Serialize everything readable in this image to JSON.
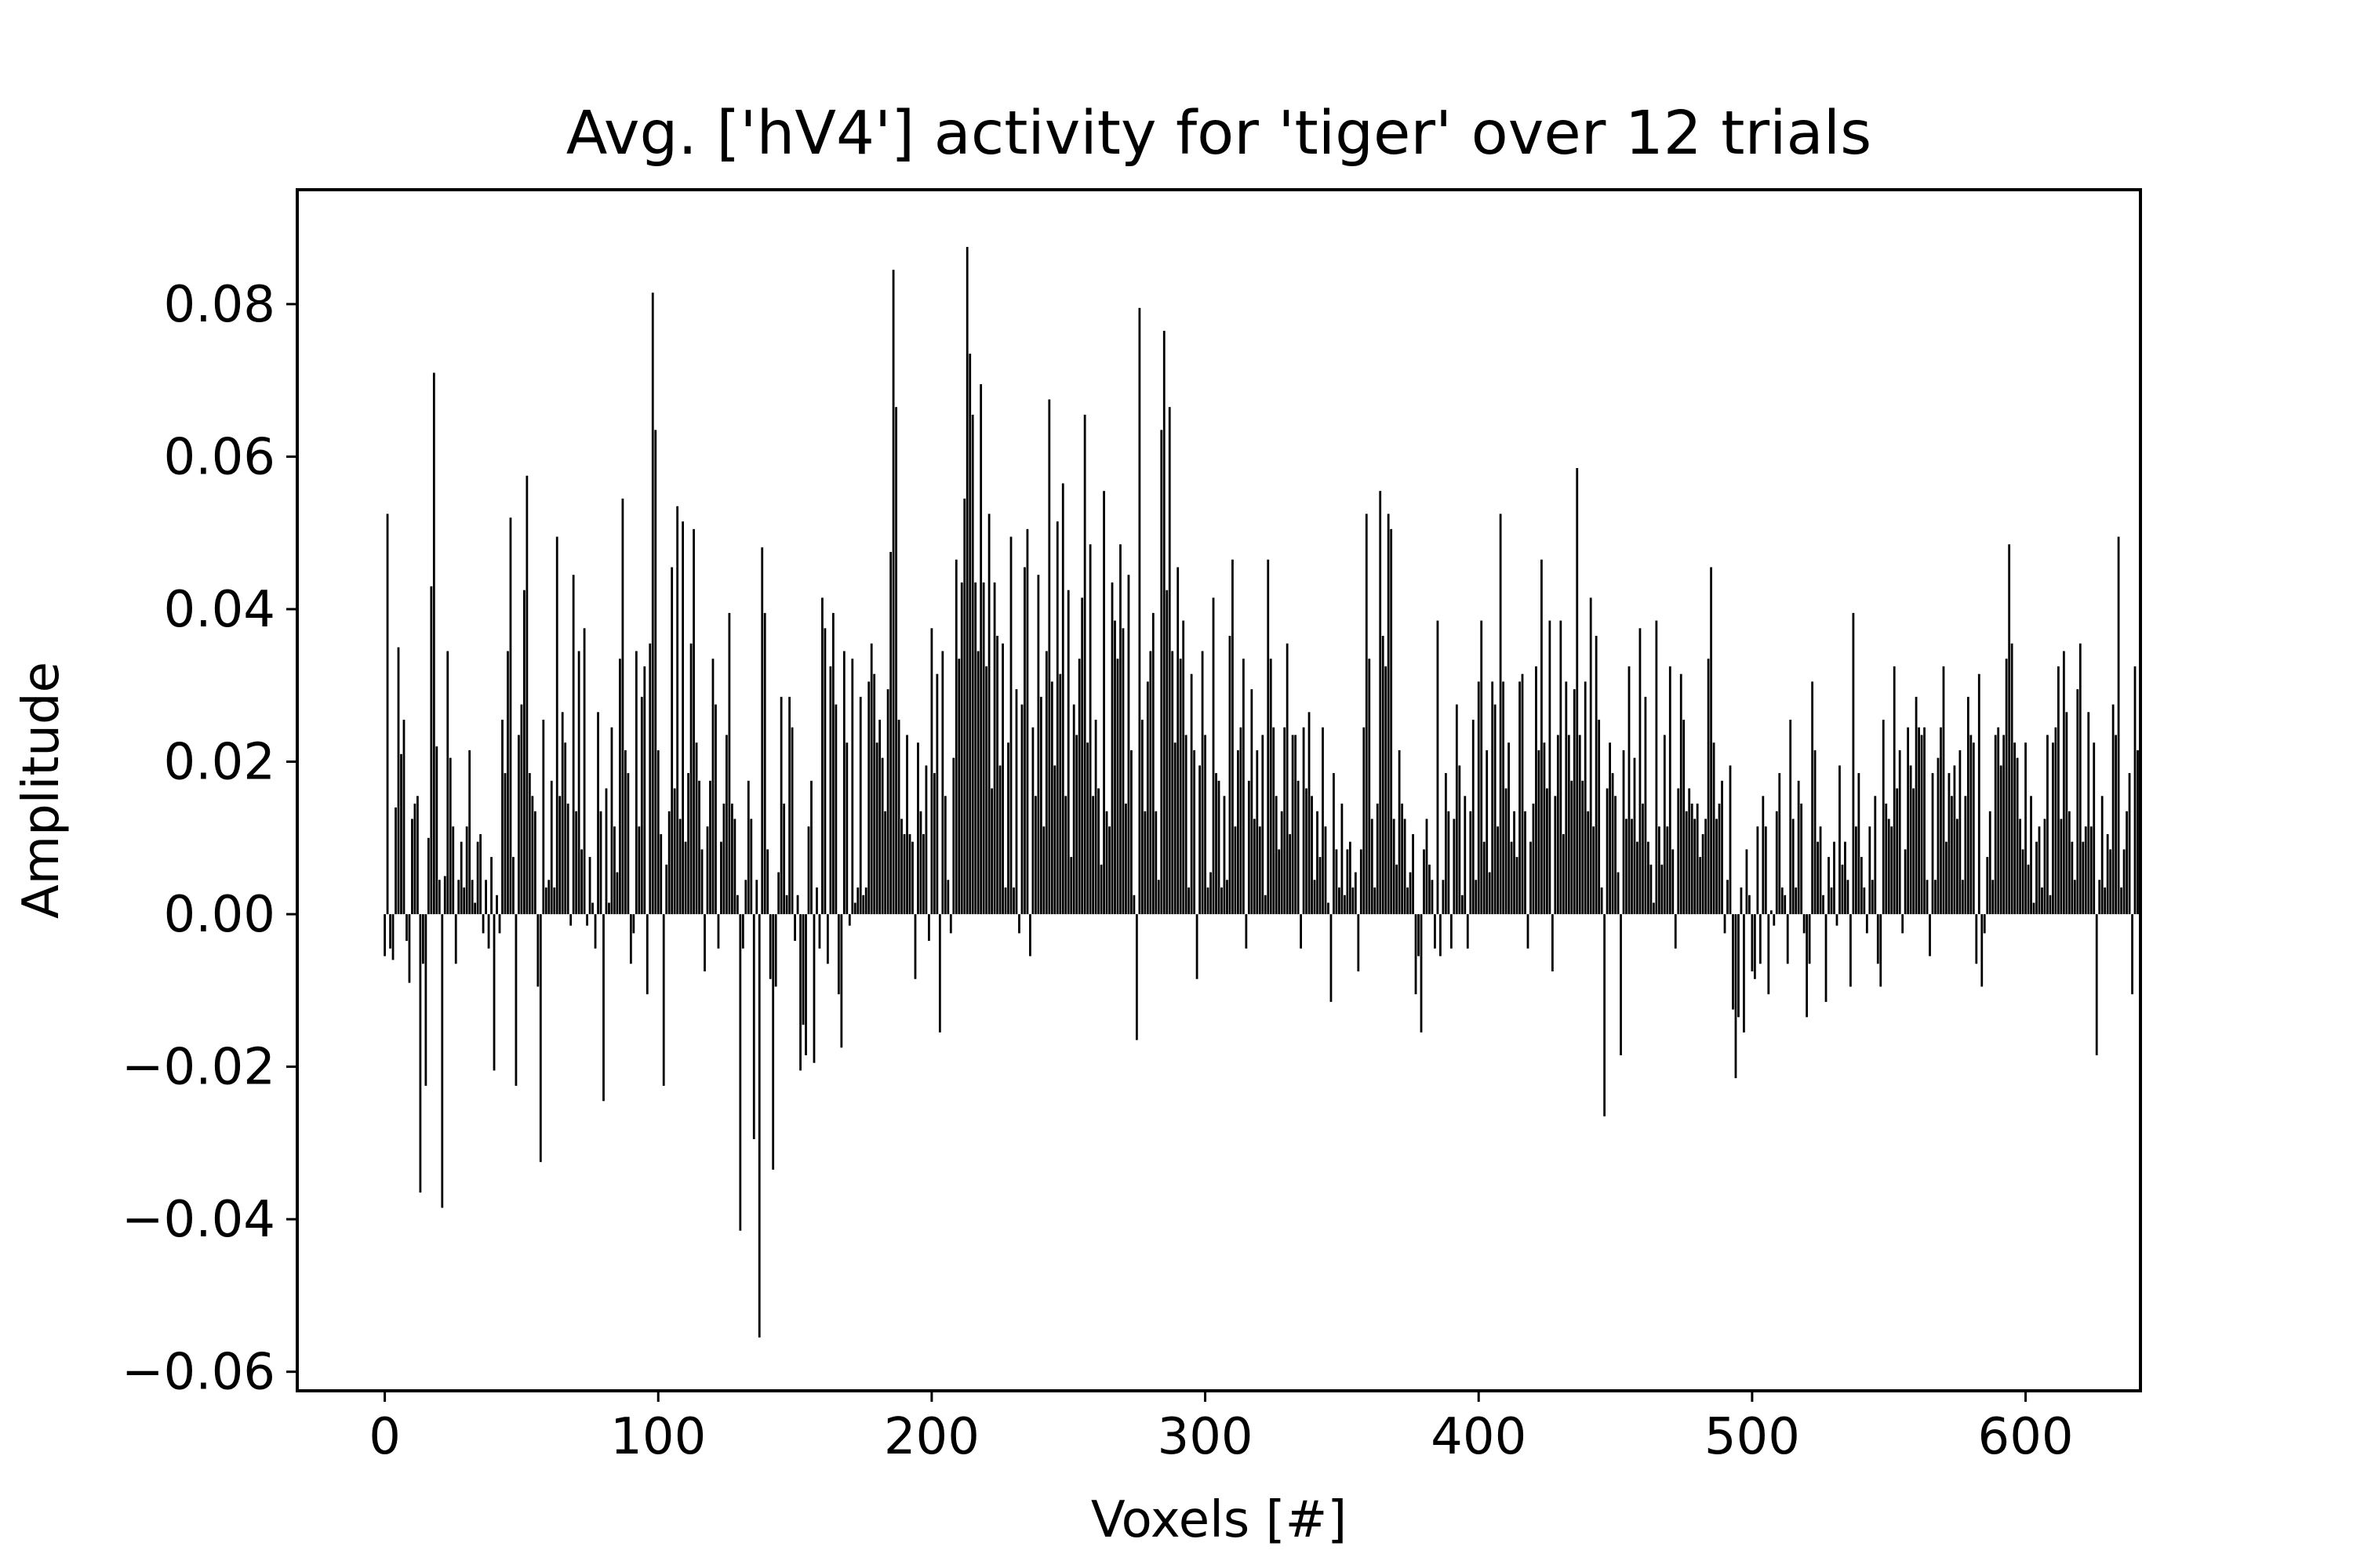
{
  "chart_data": {
    "type": "bar",
    "title": "Avg. ['hV4'] activity for 'tiger' over 12 trials",
    "xlabel": "Voxels [#]",
    "ylabel": "Amplitude",
    "xlim": [
      -32,
      642
    ],
    "ylim": [
      -0.0625,
      0.095
    ],
    "xticks": [
      0,
      100,
      200,
      300,
      400,
      500,
      600
    ],
    "xtick_labels": [
      "0",
      "100",
      "200",
      "300",
      "400",
      "500",
      "600"
    ],
    "yticks": [
      -0.06,
      -0.04,
      -0.02,
      0.0,
      0.02,
      0.04,
      0.06,
      0.08
    ],
    "ytick_labels": [
      "−0.06",
      "−0.04",
      "−0.02",
      "0.00",
      "0.02",
      "0.04",
      "0.06",
      "0.08"
    ],
    "bar_color": "#000000",
    "grid": false,
    "legend": "none",
    "n_bars": 612,
    "values": [
      -0.0055,
      0.0525,
      -0.0045,
      -0.006,
      0.014,
      0.035,
      0.021,
      0.0255,
      -0.0035,
      -0.009,
      0.0125,
      0.0145,
      0.0155,
      -0.0365,
      -0.0065,
      -0.0225,
      0.01,
      0.043,
      0.071,
      0.022,
      0.0045,
      -0.0385,
      0.005,
      0.0345,
      0.0205,
      0.0115,
      -0.0065,
      0.0045,
      0.0095,
      0.0035,
      0.0115,
      0.0215,
      0.0045,
      0.0015,
      0.0095,
      0.0105,
      -0.0025,
      0.0045,
      -0.0045,
      0.0075,
      -0.0205,
      0.0025,
      -0.0025,
      0.0255,
      0.0185,
      0.0345,
      0.052,
      0.0075,
      -0.0225,
      0.0235,
      0.0275,
      0.0425,
      0.0575,
      0.0185,
      0.0155,
      0.0135,
      -0.0095,
      -0.0325,
      0.0255,
      0.0035,
      0.0045,
      0.0175,
      0.0035,
      0.0495,
      0.0155,
      0.0265,
      0.0225,
      0.0145,
      -0.0015,
      0.0445,
      0.0135,
      0.0345,
      0.0085,
      0.0375,
      -0.0015,
      0.0075,
      0.0015,
      -0.0045,
      0.0265,
      0.0135,
      -0.0245,
      0.0165,
      0.0015,
      0.0245,
      0.0115,
      0.0055,
      0.0335,
      0.0545,
      0.0215,
      0.0185,
      -0.0065,
      -0.0025,
      0.0345,
      0.0115,
      0.0285,
      0.0325,
      -0.0105,
      0.0355,
      0.0815,
      0.0635,
      0.0215,
      0.0105,
      -0.0225,
      0.0065,
      0.0135,
      0.0455,
      0.0165,
      0.0535,
      0.0125,
      0.0515,
      0.0095,
      0.0185,
      0.0355,
      0.0505,
      0.0225,
      0.0175,
      0.0085,
      -0.0075,
      0.0115,
      0.0175,
      0.0335,
      0.0275,
      -0.0045,
      0.0095,
      0.0145,
      0.0235,
      0.0395,
      0.0145,
      0.0125,
      0.0025,
      -0.0415,
      -0.0045,
      0.0045,
      0.0175,
      0.0125,
      -0.0295,
      0.0045,
      -0.0555,
      0.0481,
      0.0395,
      0.0085,
      -0.0085,
      -0.0335,
      -0.0095,
      0.0055,
      0.0285,
      0.0145,
      0.0025,
      0.0285,
      0.0245,
      -0.0035,
      0.0025,
      -0.0205,
      -0.0145,
      -0.0185,
      0.0115,
      0.0175,
      -0.0195,
      0.0035,
      -0.0045,
      0.0415,
      0.0375,
      -0.0065,
      0.0325,
      0.0395,
      0.0275,
      -0.0105,
      -0.0175,
      0.0345,
      0.0225,
      -0.0015,
      0.0335,
      0.0015,
      0.0035,
      0.0285,
      0.0025,
      0.0035,
      0.0305,
      0.0355,
      0.0315,
      0.0225,
      0.0255,
      0.0205,
      0.0135,
      0.0295,
      0.0475,
      0.0845,
      0.0665,
      0.0255,
      0.0125,
      0.0105,
      0.0235,
      0.0105,
      0.0095,
      -0.0085,
      0.0225,
      0.0135,
      0.0105,
      0.0195,
      -0.0035,
      0.0375,
      0.0185,
      0.0315,
      -0.0155,
      0.0345,
      0.0155,
      0.0045,
      -0.0025,
      0.0205,
      0.0465,
      0.0335,
      0.0435,
      0.0545,
      0.0875,
      0.0735,
      0.0655,
      0.0435,
      0.0345,
      0.0695,
      0.0435,
      0.0325,
      0.0525,
      0.0165,
      0.0435,
      0.0365,
      0.0195,
      0.0355,
      0.0035,
      0.0225,
      0.0495,
      0.0035,
      0.0295,
      -0.0025,
      0.0275,
      0.0455,
      0.0505,
      -0.0055,
      0.0245,
      0.0155,
      0.0445,
      0.0285,
      0.0115,
      0.0345,
      0.0675,
      0.0305,
      0.0195,
      0.0515,
      0.0315,
      0.0565,
      0.0155,
      0.0425,
      0.0075,
      0.0275,
      0.0235,
      0.0335,
      0.0415,
      0.0655,
      0.0225,
      0.0485,
      0.0155,
      0.0255,
      0.0165,
      0.0065,
      0.0555,
      0.0135,
      0.0115,
      0.0435,
      0.0385,
      0.0335,
      0.0485,
      0.0375,
      0.0145,
      0.0445,
      0.0215,
      0.0025,
      -0.0165,
      0.0795,
      0.0255,
      0.0135,
      0.0305,
      0.0345,
      0.0395,
      0.0135,
      0.0045,
      0.0635,
      0.0765,
      0.0425,
      0.0665,
      0.0345,
      0.0225,
      0.0455,
      0.0335,
      0.0385,
      0.0235,
      0.0035,
      0.0315,
      0.0215,
      -0.0085,
      0.0195,
      0.0345,
      0.0235,
      0.0035,
      0.0055,
      0.0415,
      0.0185,
      0.0175,
      0.0035,
      0.0155,
      0.0045,
      0.0365,
      0.0465,
      0.0115,
      0.0215,
      0.0245,
      0.0335,
      -0.0045,
      0.0175,
      0.0295,
      0.0125,
      0.0215,
      0.0115,
      0.0235,
      0.0025,
      0.0465,
      0.0335,
      0.0245,
      0.0155,
      0.0085,
      0.0135,
      0.0245,
      0.0355,
      0.0105,
      0.0235,
      0.0235,
      0.0175,
      -0.0045,
      0.0245,
      0.0165,
      0.0265,
      0.0155,
      0.0045,
      0.0135,
      0.0075,
      0.0245,
      0.0115,
      0.0015,
      -0.0115,
      0.0185,
      0.0085,
      0.0035,
      0.0145,
      0.0025,
      0.0085,
      0.0095,
      0.0035,
      0.0055,
      -0.0075,
      0.0085,
      0.0245,
      0.0525,
      0.0335,
      0.0125,
      0.0035,
      0.0145,
      0.0555,
      0.0365,
      0.0325,
      0.0525,
      0.0505,
      0.0125,
      0.0065,
      0.0215,
      0.0145,
      0.0125,
      0.0035,
      0.0055,
      0.0105,
      -0.0105,
      -0.0055,
      -0.0155,
      0.0085,
      0.0125,
      0.0065,
      0.0045,
      -0.0045,
      0.0385,
      -0.0055,
      0.0045,
      0.0185,
      0.0135,
      -0.0045,
      0.0125,
      0.0275,
      0.0195,
      0.0025,
      0.0155,
      -0.0045,
      0.0135,
      0.0255,
      0.0045,
      0.0305,
      0.0385,
      0.0095,
      0.0215,
      0.0055,
      0.0305,
      0.0275,
      0.0115,
      0.0525,
      0.0305,
      0.0165,
      0.0225,
      0.0095,
      0.0135,
      0.0075,
      0.0305,
      0.0315,
      0.0135,
      -0.0045,
      0.0095,
      0.0145,
      0.0325,
      0.0215,
      0.0465,
      0.0225,
      0.0165,
      0.0385,
      -0.0075,
      0.0155,
      0.0235,
      0.0385,
      0.0105,
      0.0305,
      0.0235,
      0.0175,
      0.0295,
      0.0585,
      0.0235,
      0.0175,
      0.0305,
      0.0135,
      0.0415,
      0.0115,
      0.0365,
      0.0255,
      0.0035,
      -0.0265,
      0.0165,
      0.0225,
      0.0185,
      0.0155,
      0.0055,
      -0.0185,
      0.0215,
      0.0125,
      0.0325,
      0.0125,
      0.0205,
      0.0095,
      0.0375,
      0.0145,
      0.0285,
      0.0095,
      0.0065,
      0.0015,
      0.0385,
      0.0115,
      0.0065,
      0.0235,
      0.0115,
      0.0325,
      0.0085,
      -0.0045,
      0.0165,
      0.0315,
      0.0255,
      0.0135,
      0.0165,
      0.0145,
      0.0125,
      0.0145,
      0.0075,
      0.0105,
      0.0125,
      0.0335,
      0.0455,
      0.0225,
      0.0125,
      0.0145,
      0.0175,
      -0.0025,
      0.0045,
      0.0195,
      -0.0125,
      -0.0215,
      -0.0135,
      0.0035,
      -0.0155,
      0.0085,
      0.0025,
      -0.0075,
      -0.0085,
      0.0115,
      -0.0065,
      0.0155,
      0.0115,
      -0.0105,
      0.0005,
      -0.0015,
      0.0135,
      0.0185,
      0.0035,
      0.0025,
      -0.0065,
      0.0255,
      0.0125,
      0.0035,
      0.0175,
      0.0145,
      -0.0025,
      -0.0135,
      -0.0065,
      0.0305,
      0.0215,
      0.0095,
      0.0115,
      0.0025,
      -0.0115,
      0.0075,
      0.0035,
      0.0095,
      -0.0015,
      0.0195,
      0.0065,
      0.0095,
      0.0045,
      -0.0095,
      0.0395,
      0.0115,
      0.0185,
      0.0075,
      0.0035,
      -0.0025,
      0.0115,
      0.0045,
      0.0155,
      -0.0065,
      -0.0095,
      0.0255,
      0.0145,
      0.0125,
      0.0115,
      0.0325,
      0.0165,
      0.0215,
      -0.0025,
      0.0085,
      0.0245,
      0.0195,
      0.0165,
      0.0285,
      0.0245,
      0.0235,
      0.0245,
      0.0045,
      -0.0055,
      0.0185,
      0.0045,
      0.0205,
      0.0245,
      0.0325,
      0.0095,
      0.0185,
      0.0155,
      0.0195,
      0.0125,
      0.0215,
      0.0045,
      0.0155,
      0.0285,
      0.0235,
      0.0225,
      -0.0065,
      0.0315,
      -0.0095,
      -0.0025,
      0.0075,
      0.0135,
      0.0045,
      0.0235,
      0.0245,
      0.0195,
      0.0235,
      0.0335,
      0.0485,
      0.0355,
      0.0225,
      0.0205,
      0.0125,
      0.0085,
      0.0225,
      0.0065,
      0.0155,
      0.0015,
      0.0095,
      0.0115,
      0.0035,
      0.0125,
      0.0235,
      0.0025,
      0.0225,
      0.0245,
      0.0325,
      0.0125,
      0.0345,
      0.0265,
      0.0135,
      0.0095,
      0.0045,
      0.0295,
      0.0355,
      0.0095,
      0.0115,
      0.0265,
      0.0115,
      0.0225,
      -0.0185,
      0.0045,
      0.0155,
      0.0035,
      0.0105,
      0.0085,
      0.0275,
      0.0235,
      0.0495,
      0.0035,
      0.0085,
      0.0135,
      0.0185,
      -0.0105,
      0.0325,
      0.0215
    ]
  }
}
